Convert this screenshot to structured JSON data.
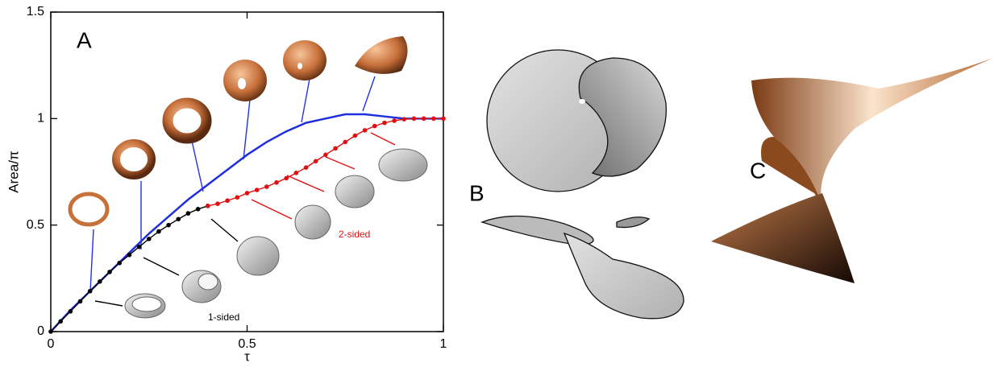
{
  "chart_data": {
    "type": "line",
    "panel_label": "A",
    "xlabel": "τ",
    "ylabel": "Area/π",
    "xlim": [
      0,
      1
    ],
    "ylim": [
      0,
      1.5
    ],
    "xticks": [
      0,
      0.5,
      1
    ],
    "yticks": [
      0,
      0.5,
      1,
      1.5
    ],
    "series": [
      {
        "color": "#1f2fe0",
        "marker": false,
        "x": [
          0,
          0.05,
          0.1,
          0.15,
          0.2,
          0.25,
          0.3,
          0.35,
          0.4,
          0.45,
          0.5,
          0.55,
          0.6,
          0.65,
          0.7,
          0.75,
          0.8,
          0.85,
          0.9,
          0.95,
          1
        ],
        "values": [
          0,
          0.1,
          0.19,
          0.28,
          0.37,
          0.46,
          0.54,
          0.62,
          0.69,
          0.76,
          0.83,
          0.89,
          0.94,
          0.98,
          1.0,
          1.02,
          1.02,
          1.01,
          1.0,
          1.0,
          1.0
        ]
      },
      {
        "name": "1-sided",
        "color": "#000000",
        "marker": true,
        "x": [
          0,
          0.025,
          0.05,
          0.075,
          0.1,
          0.125,
          0.15,
          0.175,
          0.2,
          0.225,
          0.25,
          0.275,
          0.3,
          0.325,
          0.35,
          0.375,
          0.4
        ],
        "values": [
          0,
          0.048,
          0.095,
          0.142,
          0.19,
          0.235,
          0.28,
          0.322,
          0.36,
          0.398,
          0.435,
          0.47,
          0.5,
          0.528,
          0.555,
          0.575,
          0.59
        ]
      },
      {
        "name": "2-sided",
        "color": "#e01010",
        "marker": true,
        "x": [
          0.4,
          0.425,
          0.45,
          0.475,
          0.5,
          0.525,
          0.55,
          0.575,
          0.6,
          0.625,
          0.65,
          0.675,
          0.7,
          0.725,
          0.75,
          0.775,
          0.8,
          0.825,
          0.85,
          0.875,
          0.9,
          0.925,
          0.95,
          0.975,
          1
        ],
        "values": [
          0.59,
          0.6,
          0.615,
          0.63,
          0.65,
          0.665,
          0.68,
          0.7,
          0.72,
          0.745,
          0.77,
          0.8,
          0.83,
          0.86,
          0.89,
          0.92,
          0.945,
          0.965,
          0.98,
          0.99,
          0.997,
          1,
          1,
          1,
          1
        ]
      }
    ]
  },
  "panel_labels": [
    "B",
    "C"
  ]
}
